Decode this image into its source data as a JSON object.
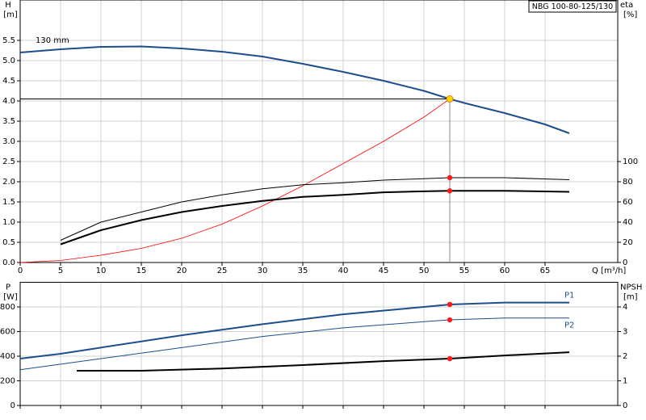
{
  "chart_data": [
    {
      "type": "line",
      "title": "NBG 100-80-125/130",
      "annotation": "130 mm",
      "y_label": "H",
      "y_unit": "[m]",
      "y2_label": "eta",
      "y2_unit": "[%]",
      "x_label": "Q [m³/h]",
      "xlim": [
        0,
        74
      ],
      "ylim": [
        0,
        6.5
      ],
      "y2lim": [
        0,
        260
      ],
      "grid": true,
      "xticks": [
        0,
        5,
        10,
        15,
        20,
        25,
        30,
        35,
        40,
        45,
        50,
        55,
        60,
        65
      ],
      "yticks": [
        {
          "value": 0,
          "label": "0.0"
        },
        {
          "value": 0.5,
          "label": "0.5"
        },
        {
          "value": 1,
          "label": "1.0"
        },
        {
          "value": 1.5,
          "label": "1.5"
        },
        {
          "value": 2,
          "label": "2.0"
        },
        {
          "value": 2.5,
          "label": "2.5"
        },
        {
          "value": 3,
          "label": "3.0"
        },
        {
          "value": 3.5,
          "label": "3.5"
        },
        {
          "value": 4,
          "label": "4.0"
        },
        {
          "value": 4.5,
          "label": "4.5"
        },
        {
          "value": 5,
          "label": "5.0"
        },
        {
          "value": 5.5,
          "label": "5.5"
        }
      ],
      "y2ticks": [
        0,
        20,
        40,
        60,
        80,
        100
      ],
      "duty_point": {
        "x": 53.2,
        "y": 4.05
      },
      "series": [
        {
          "color": "#1f4e8c",
          "width": 2,
          "x": [
            0,
            5,
            10,
            15,
            20,
            25,
            30,
            35,
            40,
            45,
            50,
            53.2,
            55,
            60,
            65,
            68
          ],
          "values": [
            5.2,
            5.28,
            5.34,
            5.35,
            5.3,
            5.22,
            5.1,
            4.92,
            4.72,
            4.5,
            4.25,
            4.05,
            3.95,
            3.7,
            3.42,
            3.2
          ]
        },
        {
          "color": "#ff0000",
          "width": 0.8,
          "x": [
            0,
            5,
            10,
            15,
            20,
            25,
            30,
            35,
            40,
            45,
            50,
            53.2
          ],
          "values": [
            0,
            0.05,
            0.18,
            0.35,
            0.6,
            0.95,
            1.4,
            1.9,
            2.45,
            3.0,
            3.6,
            4.05
          ]
        },
        {
          "color": "#000000",
          "width": 1,
          "axis": "y2",
          "x": [
            5,
            10,
            15,
            20,
            25,
            30,
            35,
            40,
            45,
            50,
            53.2,
            60,
            68
          ],
          "values": [
            22,
            40,
            50,
            60,
            67,
            73,
            77,
            79,
            81.6,
            83,
            84,
            84,
            82
          ]
        },
        {
          "color": "#000000",
          "width": 2,
          "axis": "y2",
          "x": [
            5,
            10,
            15,
            20,
            25,
            30,
            35,
            40,
            45,
            50,
            53.2,
            60,
            68
          ],
          "values": [
            18,
            32,
            42,
            50,
            56,
            61,
            65,
            67,
            69.5,
            70.5,
            71,
            71,
            70
          ]
        }
      ]
    },
    {
      "type": "line",
      "y_label": "P",
      "y_unit": "[W]",
      "y2_label": "NPSH",
      "y2_unit": "[m]",
      "xlim": [
        0,
        74
      ],
      "ylim": [
        0,
        1000
      ],
      "y2lim": [
        0,
        5
      ],
      "grid": true,
      "xticks": [
        0,
        5,
        10,
        15,
        20,
        25,
        30,
        35,
        40,
        45,
        50,
        55,
        60,
        65
      ],
      "yticks": [
        0,
        200,
        400,
        600,
        800
      ],
      "y2ticks": [
        0,
        1,
        2,
        3,
        4
      ],
      "duty_point": {
        "x": 53.2
      },
      "series": [
        {
          "name": "P1",
          "color": "#1f4e8c",
          "width": 2,
          "x": [
            0,
            5,
            10,
            20,
            30,
            40,
            50,
            53.2,
            60,
            68
          ],
          "values": [
            380,
            420,
            470,
            570,
            660,
            740,
            800,
            820,
            835,
            835
          ]
        },
        {
          "name": "P2",
          "color": "#1f4e8c",
          "width": 1,
          "x": [
            0,
            10,
            20,
            30,
            40,
            50,
            53.2,
            60,
            68
          ],
          "values": [
            290,
            380,
            470,
            560,
            630,
            680,
            695,
            710,
            710
          ]
        },
        {
          "color": "#000000",
          "width": 2,
          "axis": "y2",
          "x": [
            7,
            15,
            25,
            35,
            45,
            53.2,
            60,
            68
          ],
          "values": [
            1.41,
            1.41,
            1.5,
            1.64,
            1.8,
            1.9,
            2.03,
            2.16
          ]
        }
      ]
    }
  ]
}
